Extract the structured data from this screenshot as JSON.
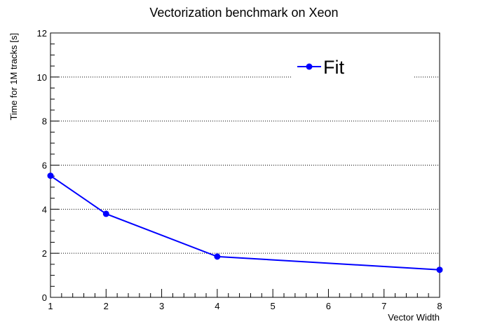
{
  "chart_data": {
    "type": "line",
    "title": "Vectorization benchmark on Xeon",
    "xlabel": "Vector Width",
    "ylabel": "Time for 1M tracks [s]",
    "xlim": [
      1,
      8
    ],
    "ylim": [
      0,
      12
    ],
    "xticks": [
      1,
      2,
      3,
      4,
      5,
      6,
      7,
      8
    ],
    "yticks": [
      0,
      2,
      4,
      6,
      8,
      10,
      12
    ],
    "grid": "horizontal dotted",
    "legend_position": "top-right",
    "series": [
      {
        "name": "Fit",
        "color": "#0000ff",
        "x": [
          1,
          2,
          4,
          8
        ],
        "y": [
          5.52,
          3.79,
          1.85,
          1.25
        ]
      }
    ]
  }
}
